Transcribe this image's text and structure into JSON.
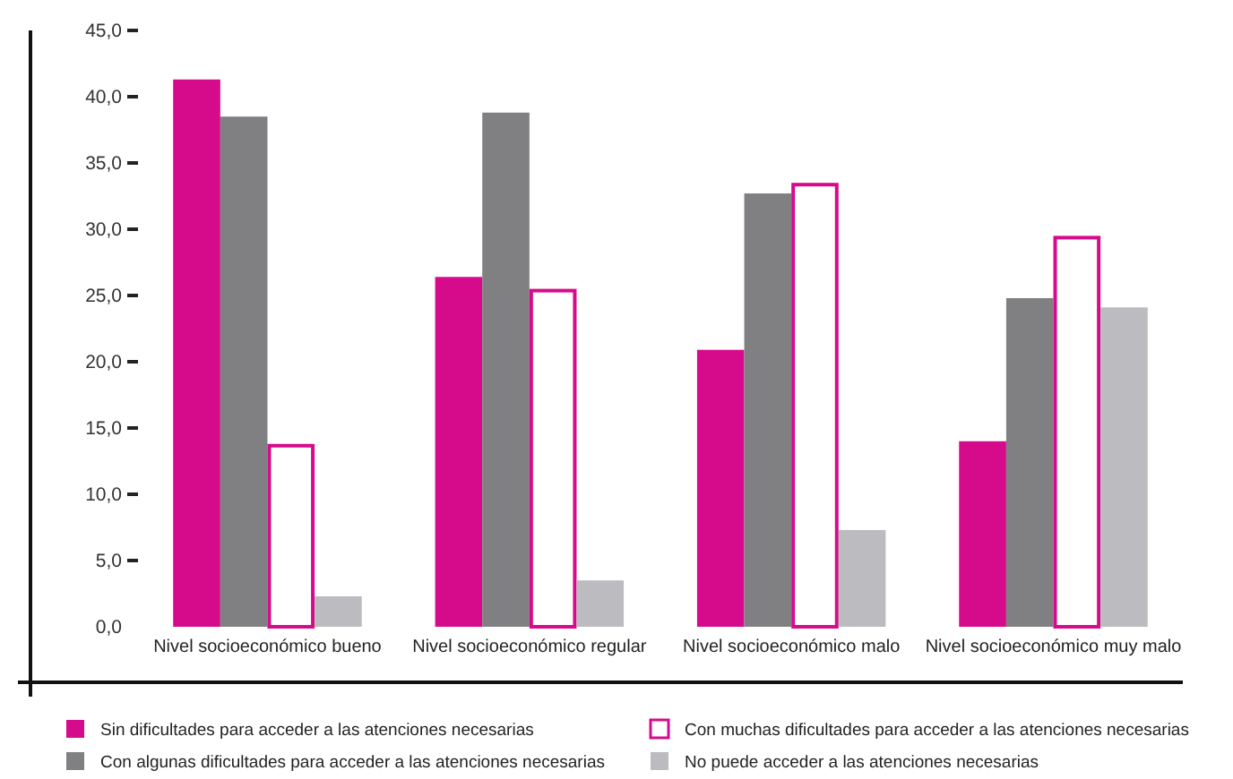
{
  "chart_data": {
    "type": "bar",
    "categories": [
      "Nivel socioeconómico bueno",
      "Nivel socioeconómico regular",
      "Nivel socioeconómico malo",
      "Nivel socioeconómico muy malo"
    ],
    "series": [
      {
        "name": "Sin dificultades para acceder a las atenciones necesarias",
        "color": "#d60b8c",
        "values": [
          41.3,
          26.4,
          20.9,
          14.0
        ]
      },
      {
        "name": "Con algunas dificultades para acceder a las atenciones necesarias",
        "color": "#808083",
        "values": [
          38.5,
          38.8,
          32.7,
          24.8
        ]
      },
      {
        "name": "Con muchas dificultades para acceder a las atenciones necesarias",
        "color": "#d60b8c",
        "values": [
          13.8,
          25.5,
          33.5,
          29.5
        ]
      },
      {
        "name": "No puede acceder a las atenciones necesarias",
        "color": "#bcbcc0",
        "values": [
          2.3,
          3.5,
          7.3,
          24.1
        ]
      }
    ],
    "ylim": [
      0,
      45
    ],
    "yticks": [
      {
        "value": 0,
        "label": "0,0"
      },
      {
        "value": 5,
        "label": "5,0"
      },
      {
        "value": 10,
        "label": "10,0"
      },
      {
        "value": 15,
        "label": "15,0"
      },
      {
        "value": 20,
        "label": "20,0"
      },
      {
        "value": 25,
        "label": "25,0"
      },
      {
        "value": 30,
        "label": "30,0"
      },
      {
        "value": 35,
        "label": "35,0"
      },
      {
        "value": 40,
        "label": "40,0"
      },
      {
        "value": 45,
        "label": "45,0"
      }
    ],
    "grid": false,
    "legend": "bottom"
  }
}
